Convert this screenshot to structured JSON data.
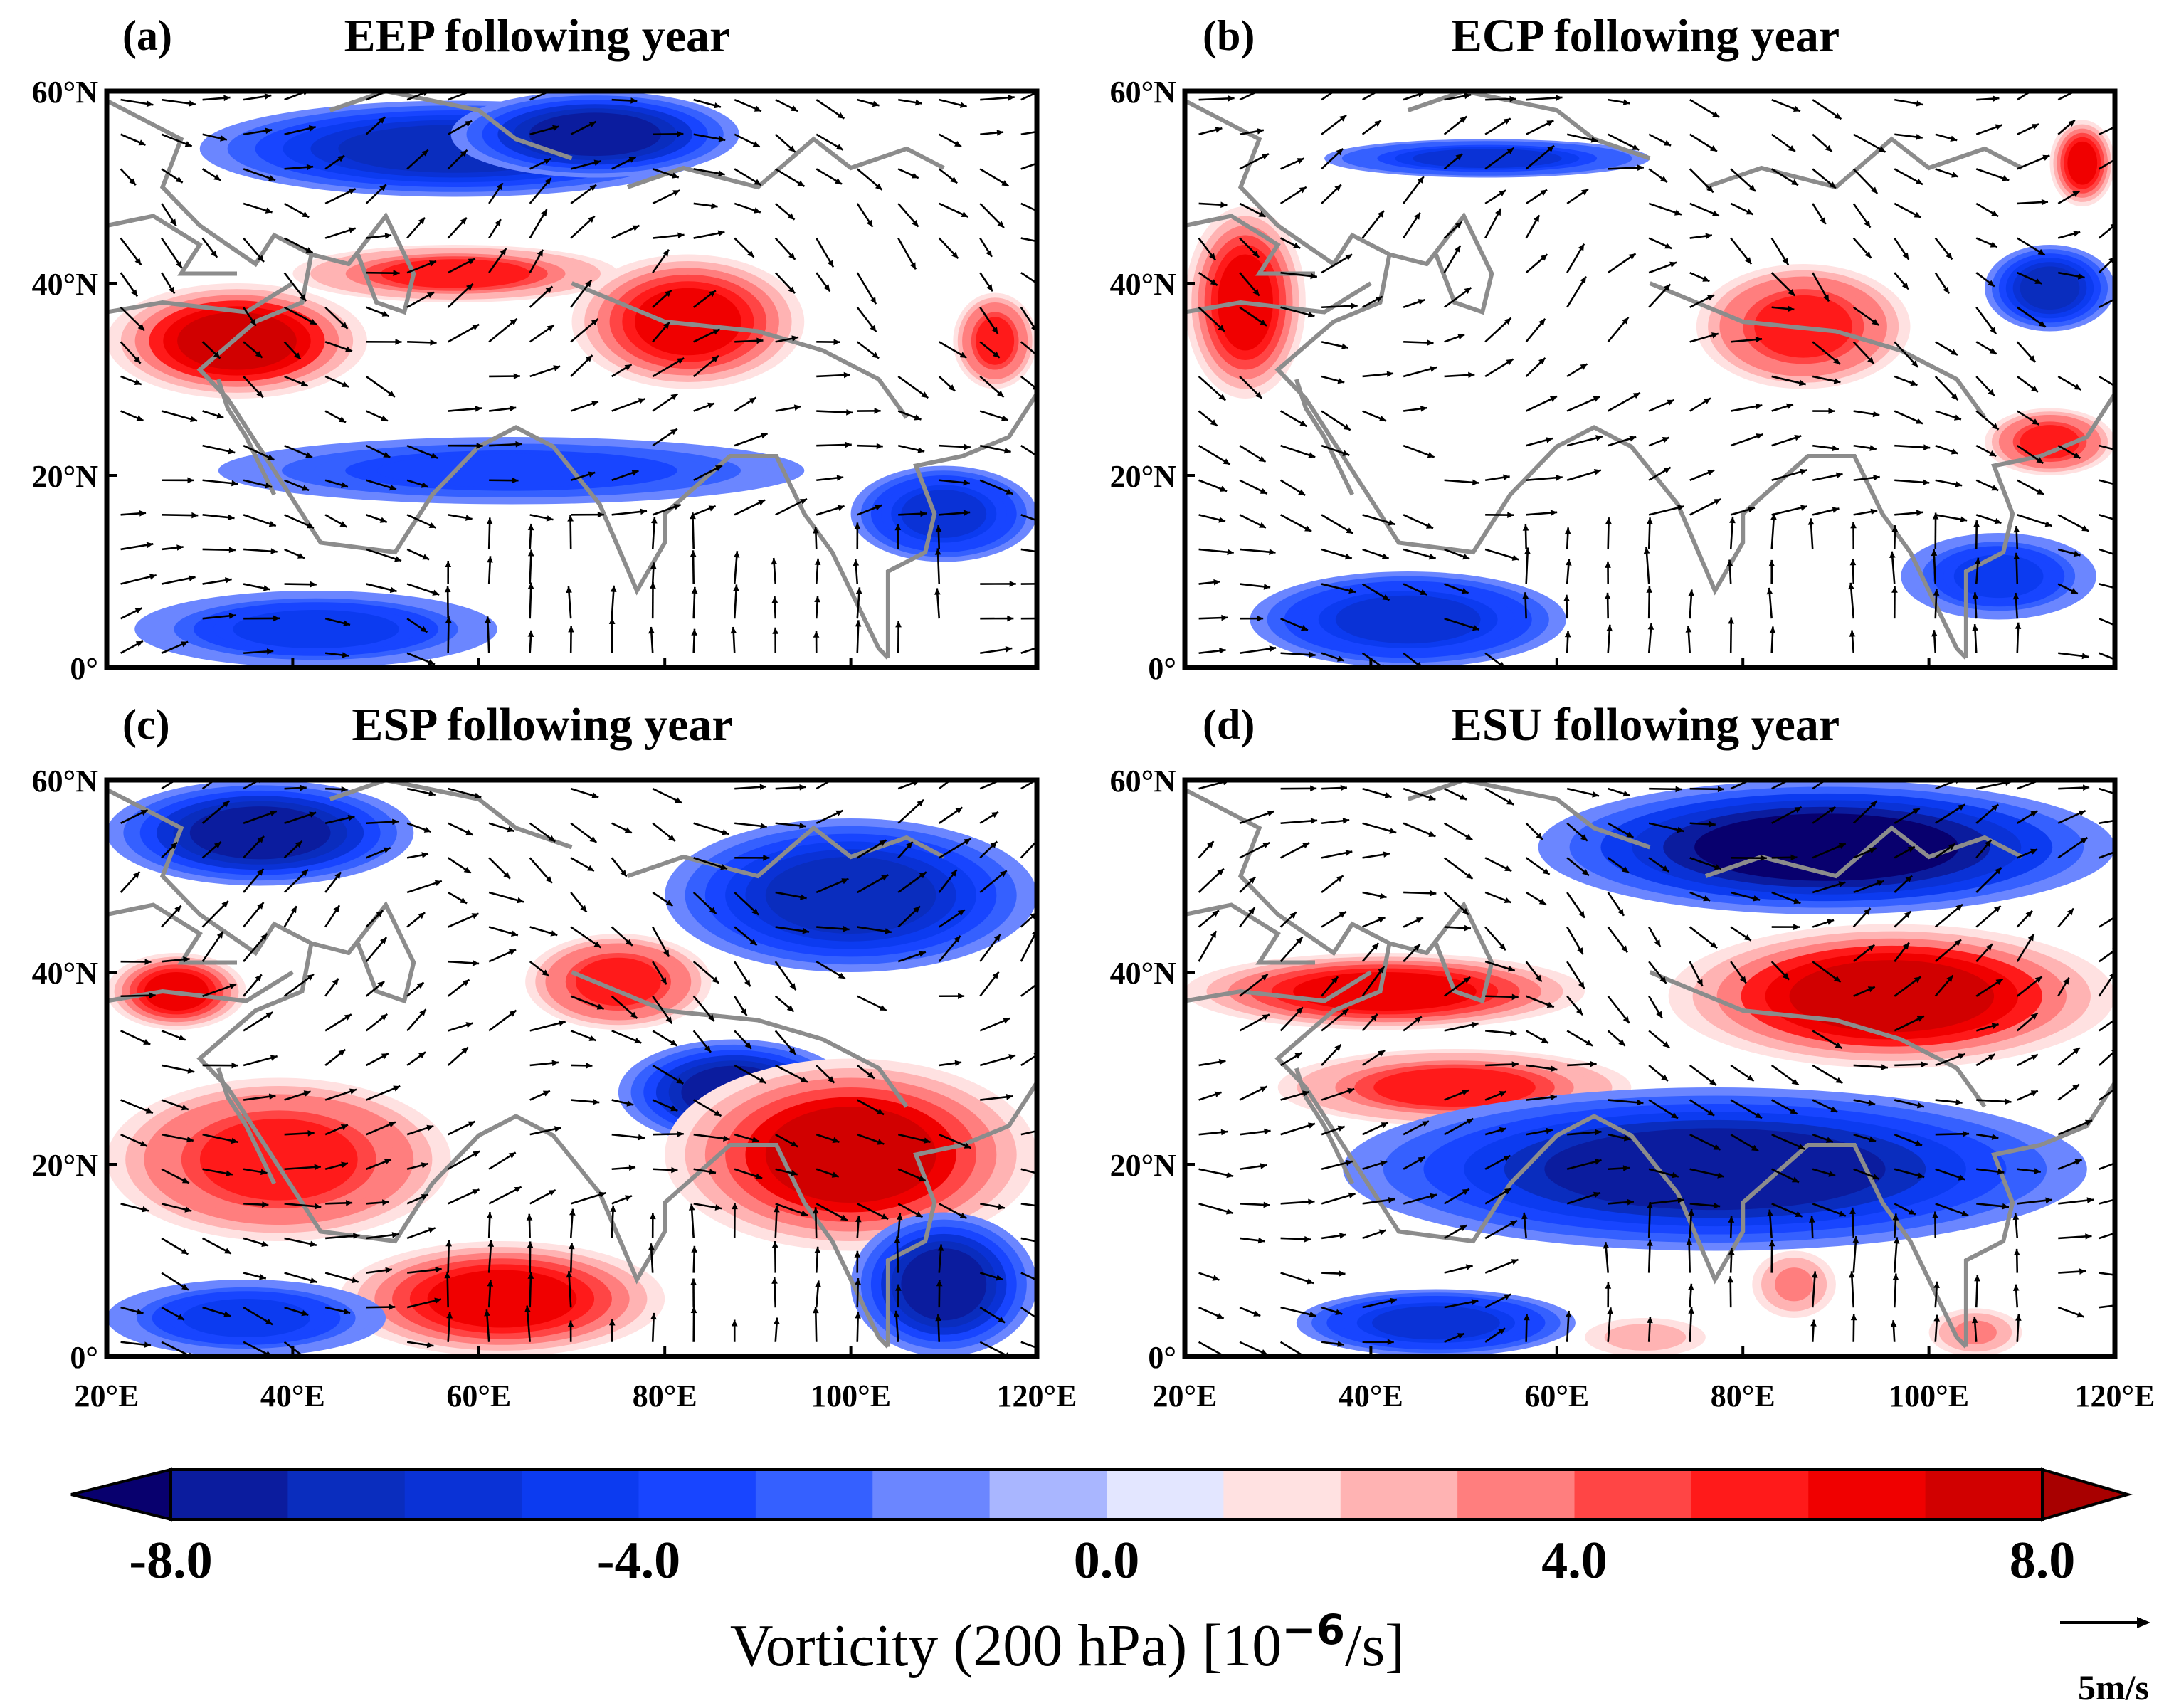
{
  "chart_data": {
    "type": "heatmap",
    "description_variable": "Vorticity (200 hPa)",
    "axes": {
      "x_ticks": [
        "20°E",
        "40°E",
        "60°E",
        "80°E",
        "100°E",
        "120°E"
      ],
      "y_ticks": [
        "60°N",
        "40°N",
        "20°N",
        "0°"
      ],
      "x_range": [
        20,
        120
      ],
      "y_range": [
        0,
        60
      ]
    },
    "panels": [
      {
        "id": "a",
        "label": "(a)",
        "title": "EEP following year",
        "vorticity_regions": [
          {
            "sign": "negative",
            "lon": [
              30,
              85
            ],
            "lat": [
              49,
              59
            ],
            "peak": -6.0
          },
          {
            "sign": "negative",
            "lon": [
              57,
              88
            ],
            "lat": [
              51,
              60
            ],
            "peak": -7.0
          },
          {
            "sign": "positive",
            "lon": [
              20,
              48
            ],
            "lat": [
              28,
              40
            ],
            "peak": 7.0
          },
          {
            "sign": "positive",
            "lon": [
              40,
              75
            ],
            "lat": [
              38,
              44
            ],
            "peak": 4.5
          },
          {
            "sign": "positive",
            "lon": [
              70,
              95
            ],
            "lat": [
              29,
              43
            ],
            "peak": 5.5
          },
          {
            "sign": "positive",
            "lon": [
              111,
              120
            ],
            "lat": [
              29,
              39
            ],
            "peak": 5.0
          },
          {
            "sign": "negative",
            "lon": [
              32,
              95
            ],
            "lat": [
              17,
              24
            ],
            "peak": -3.5
          },
          {
            "sign": "negative",
            "lon": [
              100,
              120
            ],
            "lat": [
              11,
              21
            ],
            "peak": -5.0
          },
          {
            "sign": "negative",
            "lon": [
              23,
              62
            ],
            "lat": [
              0,
              8
            ],
            "peak": -4.0
          }
        ]
      },
      {
        "id": "b",
        "label": "(b)",
        "title": "ECP following year",
        "vorticity_regions": [
          {
            "sign": "negative",
            "lon": [
              35,
              70
            ],
            "lat": [
              51,
              55
            ],
            "peak": -4.5
          },
          {
            "sign": "positive",
            "lon": [
              20,
              33
            ],
            "lat": [
              28,
              48
            ],
            "peak": 5.5
          },
          {
            "sign": "positive",
            "lon": [
              75,
              98
            ],
            "lat": [
              29,
              42
            ],
            "peak": 5.0
          },
          {
            "sign": "positive",
            "lon": [
              113,
              120
            ],
            "lat": [
              48,
              57
            ],
            "peak": 6.0
          },
          {
            "sign": "negative",
            "lon": [
              106,
              120
            ],
            "lat": [
              35,
              44
            ],
            "peak": -6.0
          },
          {
            "sign": "positive",
            "lon": [
              106,
              120
            ],
            "lat": [
              20,
              27
            ],
            "peak": 5.0
          },
          {
            "sign": "negative",
            "lon": [
              27,
              61
            ],
            "lat": [
              0,
              10
            ],
            "peak": -5.0
          },
          {
            "sign": "negative",
            "lon": [
              97,
              118
            ],
            "lat": [
              5,
              14
            ],
            "peak": -4.0
          }
        ]
      },
      {
        "id": "c",
        "label": "(c)",
        "title": "ESP following year",
        "vorticity_regions": [
          {
            "sign": "negative",
            "lon": [
              20,
              53
            ],
            "lat": [
              49,
              60
            ],
            "peak": -7.0
          },
          {
            "sign": "negative",
            "lon": [
              80,
              120
            ],
            "lat": [
              40,
              56
            ],
            "peak": -6.0
          },
          {
            "sign": "positive",
            "lon": [
              20,
              35
            ],
            "lat": [
              34,
              42
            ],
            "peak": 5.5
          },
          {
            "sign": "positive",
            "lon": [
              65,
              85
            ],
            "lat": [
              34,
              44
            ],
            "peak": 5.0
          },
          {
            "sign": "negative",
            "lon": [
              75,
              100
            ],
            "lat": [
              22,
              33
            ],
            "peak": -7.0
          },
          {
            "sign": "positive",
            "lon": [
              20,
              57
            ],
            "lat": [
              12,
              29
            ],
            "peak": 5.0
          },
          {
            "sign": "positive",
            "lon": [
              80,
              120
            ],
            "lat": [
              11,
              31
            ],
            "peak": 6.5
          },
          {
            "sign": "positive",
            "lon": [
              45,
              80
            ],
            "lat": [
              0,
              12
            ],
            "peak": 5.5
          },
          {
            "sign": "negative",
            "lon": [
              100,
              120
            ],
            "lat": [
              0,
              15
            ],
            "peak": -7.0
          },
          {
            "sign": "negative",
            "lon": [
              20,
              50
            ],
            "lat": [
              0,
              8
            ],
            "peak": -4.0
          }
        ]
      },
      {
        "id": "d",
        "label": "(d)",
        "title": "ESU following year",
        "vorticity_regions": [
          {
            "sign": "negative",
            "lon": [
              58,
              120
            ],
            "lat": [
              46,
              60
            ],
            "peak": -7.5
          },
          {
            "sign": "positive",
            "lon": [
              20,
              63
            ],
            "lat": [
              34,
              42
            ],
            "peak": 6.0
          },
          {
            "sign": "positive",
            "lon": [
              72,
              120
            ],
            "lat": [
              30,
              45
            ],
            "peak": 7.0
          },
          {
            "sign": "positive",
            "lon": [
              30,
              68
            ],
            "lat": [
              24,
              32
            ],
            "peak": 4.5
          },
          {
            "sign": "negative",
            "lon": [
              37,
              117
            ],
            "lat": [
              11,
              28
            ],
            "peak": -6.5
          },
          {
            "sign": "negative",
            "lon": [
              32,
              62
            ],
            "lat": [
              0,
              7
            ],
            "peak": -5.0
          },
          {
            "sign": "positive",
            "lon": [
              81,
              90
            ],
            "lat": [
              4,
              11
            ],
            "peak": 3.0
          },
          {
            "sign": "positive",
            "lon": [
              63,
              76
            ],
            "lat": [
              0,
              4
            ],
            "peak": 2.5
          },
          {
            "sign": "positive",
            "lon": [
              100,
              110
            ],
            "lat": [
              0,
              5
            ],
            "peak": 3.0
          }
        ]
      }
    ],
    "colorbar": {
      "min": -8.0,
      "max": 8.0,
      "ticks": [
        "-8.0",
        "-4.0",
        "0.0",
        "4.0",
        "8.0"
      ],
      "colors": [
        "#08006e",
        "#0b1c9e",
        "#0a2dbe",
        "#0a32d6",
        "#0c3bf0",
        "#1845ff",
        "#3560ff",
        "#6b86ff",
        "#a9b6ff",
        "#e3e6ff",
        "#ffe1e1",
        "#ffb3b3",
        "#ff7e7e",
        "#ff4545",
        "#ff1a1a",
        "#f00000",
        "#d10000",
        "#a80000"
      ],
      "label_main": "Vorticity (200 hPa) [10",
      "label_exp": "−6",
      "label_unit": "/s]"
    },
    "reference_vector": {
      "label": "5m/s",
      "value": 5
    }
  }
}
